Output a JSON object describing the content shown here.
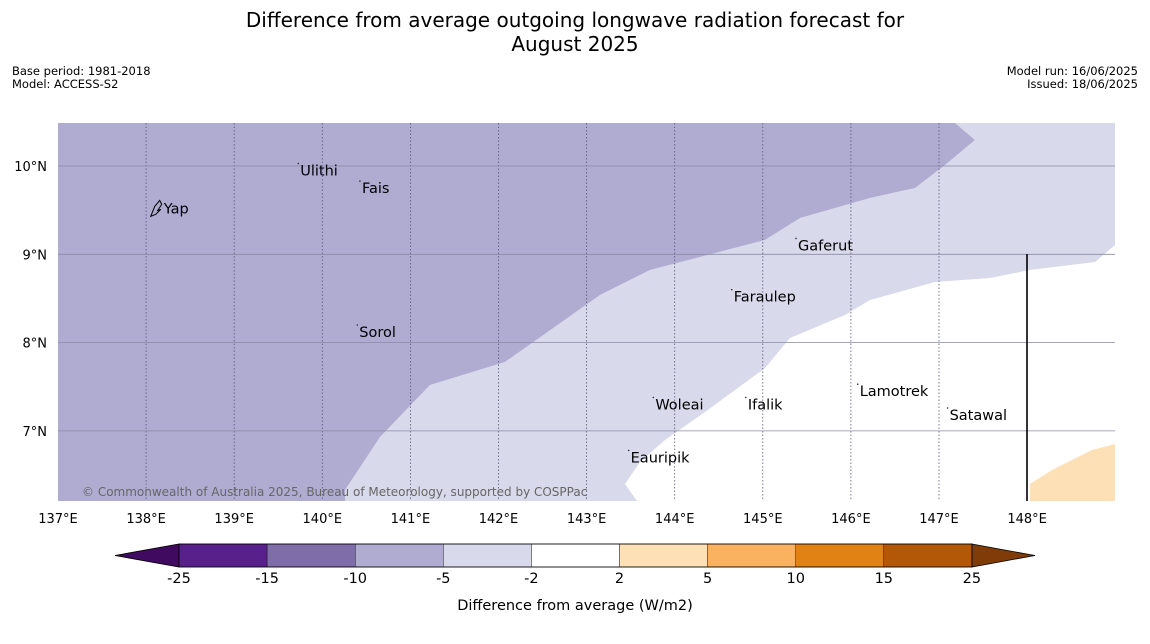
{
  "title": {
    "line1": "Difference from average outgoing longwave radiation forecast for",
    "line2": "August 2025"
  },
  "meta_left": {
    "base_period": "Base period: 1981-2018",
    "model": "Model: ACCESS-S2"
  },
  "meta_right": {
    "model_run": "Model run: 16/06/2025",
    "issued": "Issued: 18/06/2025"
  },
  "map": {
    "lon_range": [
      137,
      149
    ],
    "lat_range": [
      6.2,
      10.5
    ],
    "lon_labels": [
      "137°E",
      "138°E",
      "139°E",
      "140°E",
      "141°E",
      "142°E",
      "143°E",
      "144°E",
      "145°E",
      "146°E",
      "147°E",
      "148°E"
    ],
    "lat_labels": [
      "10°N",
      "9°N",
      "8°N",
      "7°N"
    ],
    "places": [
      {
        "name": "Yap",
        "lon": 138.2,
        "lat": 9.52
      },
      {
        "name": "Ulithi",
        "lon": 139.75,
        "lat": 9.95
      },
      {
        "name": "Fais",
        "lon": 140.45,
        "lat": 9.75
      },
      {
        "name": "Gaferut",
        "lon": 145.4,
        "lat": 9.1
      },
      {
        "name": "Faraulep",
        "lon": 144.67,
        "lat": 8.52
      },
      {
        "name": "Sorol",
        "lon": 140.42,
        "lat": 8.12
      },
      {
        "name": "Woleai",
        "lon": 143.78,
        "lat": 7.3
      },
      {
        "name": "Ifalik",
        "lon": 144.83,
        "lat": 7.3
      },
      {
        "name": "Lamotrek",
        "lon": 146.1,
        "lat": 7.45
      },
      {
        "name": "Satawal",
        "lon": 147.12,
        "lat": 7.18
      },
      {
        "name": "Eauripik",
        "lon": 143.5,
        "lat": 6.7
      }
    ],
    "attribution": "© Commonwealth of Australia 2025, Bureau of Meteorology, supported by COSPPac",
    "colors": {
      "minus10_minus5": "#b0abd1",
      "minus5_minus2": "#d8d9ea",
      "minus2_2": "#ffffff",
      "plus2_plus5": "#fde0b6"
    }
  },
  "colorbar": {
    "ticks": [
      "-25",
      "-15",
      "-10",
      "-5",
      "-2",
      "2",
      "5",
      "10",
      "15",
      "25"
    ],
    "colors": [
      "#3f0a60",
      "#58208a",
      "#7f6da9",
      "#b0abd1",
      "#d8d9ea",
      "#ffffff",
      "#fde0b6",
      "#fbb25f",
      "#e08214",
      "#b35806",
      "#7f3b08"
    ],
    "label": "Difference from average (W/m2)"
  }
}
